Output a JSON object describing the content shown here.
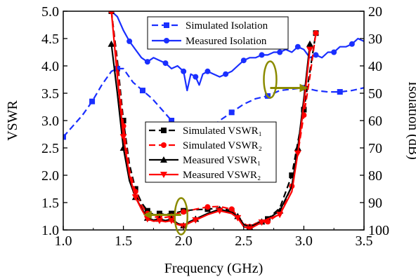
{
  "chart_data": {
    "type": "line",
    "xlabel": "Frequency (GHz)",
    "ylabel_left": "VSWR",
    "ylabel_right": "Isolation (dB)",
    "xlim": [
      1.0,
      3.5
    ],
    "ylim_left": [
      1.0,
      5.0
    ],
    "ylim_right": [
      20,
      100
    ],
    "right_axis_inverted": true,
    "grid": false,
    "x_ticks": [
      "1.0",
      "1.5",
      "2.0",
      "2.5",
      "3.0",
      "3.5"
    ],
    "y_ticks_left": [
      "1.0",
      "1.5",
      "2.0",
      "2.5",
      "3.0",
      "3.5",
      "4.0",
      "4.5",
      "5.0"
    ],
    "y_ticks_right": [
      "20",
      "30",
      "40",
      "50",
      "60",
      "70",
      "80",
      "90",
      "100"
    ],
    "legend_isolation": {
      "placement": "top-center",
      "entries": [
        "Simulated Isolation",
        "Measured Isolation"
      ]
    },
    "legend_vswr": {
      "placement": "center",
      "entries": [
        "Simulated VSWR₁",
        "Simulated VSWR₂",
        "Measured VSWR₁",
        "Measured VSWR₂"
      ]
    },
    "series": [
      {
        "name": "Simulated Isolation",
        "axis": "right",
        "color": "#1a2fff",
        "line": "dash",
        "marker": "square",
        "x": [
          1.0,
          1.08,
          1.16,
          1.24,
          1.32,
          1.4,
          1.45,
          1.5,
          1.58,
          1.66,
          1.74,
          1.82,
          1.9,
          1.95,
          2.0,
          2.1,
          2.2,
          2.3,
          2.4,
          2.5,
          2.6,
          2.7,
          2.8,
          2.9,
          3.0,
          3.1,
          3.2,
          3.3,
          3.4,
          3.5
        ],
        "y": [
          66,
          62,
          58,
          53,
          47,
          42,
          41,
          41,
          46,
          49,
          52,
          56,
          60,
          62,
          64,
          66,
          64,
          60,
          57,
          54,
          52,
          51,
          49,
          48.5,
          48,
          49,
          49.5,
          49.5,
          49,
          48
        ]
      },
      {
        "name": "Measured Isolation",
        "axis": "right",
        "color": "#1a2fff",
        "line": "solid",
        "marker": "circle",
        "x": [
          1.4,
          1.45,
          1.5,
          1.55,
          1.6,
          1.65,
          1.7,
          1.75,
          1.8,
          1.85,
          1.9,
          1.95,
          2.0,
          2.03,
          2.06,
          2.1,
          2.13,
          2.16,
          2.2,
          2.25,
          2.3,
          2.35,
          2.4,
          2.45,
          2.5,
          2.55,
          2.6,
          2.65,
          2.7,
          2.75,
          2.8,
          2.85,
          2.9,
          2.95,
          3.0,
          3.05,
          3.1,
          3.15,
          3.2,
          3.25,
          3.3,
          3.35,
          3.4,
          3.45,
          3.5
        ],
        "y": [
          20,
          22,
          27,
          31,
          34,
          37,
          38.5,
          37,
          38,
          39,
          41,
          40,
          42,
          49,
          43,
          44,
          47,
          43,
          42,
          43,
          44,
          43,
          42,
          40,
          38,
          37,
          37,
          36,
          36,
          35,
          35,
          34,
          35,
          33,
          34,
          37,
          36,
          37,
          35,
          35,
          33,
          33,
          32,
          30,
          31
        ]
      },
      {
        "name": "Simulated VSWR₁",
        "axis": "left",
        "color": "#000000",
        "line": "dash",
        "marker": "square",
        "x": [
          1.4,
          1.45,
          1.5,
          1.55,
          1.6,
          1.65,
          1.7,
          1.75,
          1.8,
          1.85,
          1.9,
          1.95,
          2.0,
          2.1,
          2.2,
          2.3,
          2.4,
          2.5,
          2.55,
          2.6,
          2.7,
          2.8,
          2.9,
          2.95,
          3.0,
          3.05,
          3.1
        ],
        "y": [
          5.0,
          4.1,
          3.0,
          2.2,
          1.75,
          1.5,
          1.35,
          1.28,
          1.3,
          1.28,
          1.3,
          1.32,
          1.35,
          1.37,
          1.38,
          1.4,
          1.35,
          1.1,
          1.05,
          1.12,
          1.2,
          1.4,
          2.0,
          2.6,
          3.2,
          3.9,
          4.6
        ]
      },
      {
        "name": "Simulated VSWR₂",
        "axis": "left",
        "color": "#ff0000",
        "line": "dash",
        "marker": "circle",
        "x": [
          1.4,
          1.45,
          1.5,
          1.55,
          1.6,
          1.65,
          1.7,
          1.75,
          1.8,
          1.85,
          1.9,
          1.95,
          2.0,
          2.1,
          2.2,
          2.3,
          2.4,
          2.5,
          2.55,
          2.6,
          2.7,
          2.8,
          2.9,
          2.95,
          3.0,
          3.05,
          3.1
        ],
        "y": [
          5.0,
          4.0,
          2.9,
          2.1,
          1.7,
          1.45,
          1.3,
          1.23,
          1.25,
          1.23,
          1.25,
          1.3,
          1.33,
          1.38,
          1.42,
          1.43,
          1.38,
          1.12,
          1.06,
          1.12,
          1.15,
          1.3,
          1.8,
          2.4,
          3.1,
          3.8,
          4.6
        ]
      },
      {
        "name": "Measured VSWR₁",
        "axis": "left",
        "color": "#000000",
        "line": "solid",
        "marker": "triangle",
        "x": [
          1.4,
          1.45,
          1.5,
          1.55,
          1.6,
          1.65,
          1.7,
          1.75,
          1.8,
          1.85,
          1.9,
          1.95,
          2.0,
          2.05,
          2.1,
          2.2,
          2.3,
          2.4,
          2.45,
          2.5,
          2.55,
          2.6,
          2.65,
          2.7,
          2.8,
          2.9,
          2.95,
          3.0,
          3.05
        ],
        "y": [
          4.4,
          3.5,
          2.5,
          1.9,
          1.6,
          1.4,
          1.22,
          1.18,
          1.2,
          1.17,
          1.2,
          1.12,
          1.08,
          1.15,
          1.2,
          1.3,
          1.38,
          1.32,
          1.25,
          1.1,
          1.05,
          1.1,
          1.15,
          1.2,
          1.35,
          1.8,
          2.5,
          3.4,
          4.4
        ]
      },
      {
        "name": "Measured VSWR₂",
        "axis": "left",
        "color": "#ff0000",
        "line": "solid",
        "marker": "triangle-down",
        "x": [
          1.4,
          1.45,
          1.5,
          1.55,
          1.6,
          1.65,
          1.7,
          1.75,
          1.8,
          1.85,
          1.9,
          1.95,
          2.0,
          2.05,
          2.1,
          2.2,
          2.3,
          2.4,
          2.45,
          2.5,
          2.55,
          2.6,
          2.65,
          2.7,
          2.8,
          2.9,
          2.95,
          3.0,
          3.05
        ],
        "y": [
          5.0,
          3.8,
          2.7,
          2.0,
          1.6,
          1.38,
          1.2,
          1.16,
          1.17,
          1.15,
          1.17,
          1.1,
          1.07,
          1.13,
          1.18,
          1.28,
          1.35,
          1.3,
          1.22,
          1.06,
          1.02,
          1.08,
          1.14,
          1.2,
          1.28,
          1.7,
          2.4,
          3.3,
          4.3
        ]
      }
    ],
    "annotations": [
      {
        "kind": "ellipse-arrow",
        "color": "#8b8b00",
        "target_axis": "right",
        "at_x": 2.72,
        "at_y_left": 3.75,
        "direction": "right"
      },
      {
        "kind": "ellipse-arrow",
        "color": "#8b8b00",
        "target_axis": "left",
        "at_x": 1.98,
        "at_y_left": 1.25,
        "direction": "left"
      }
    ]
  }
}
